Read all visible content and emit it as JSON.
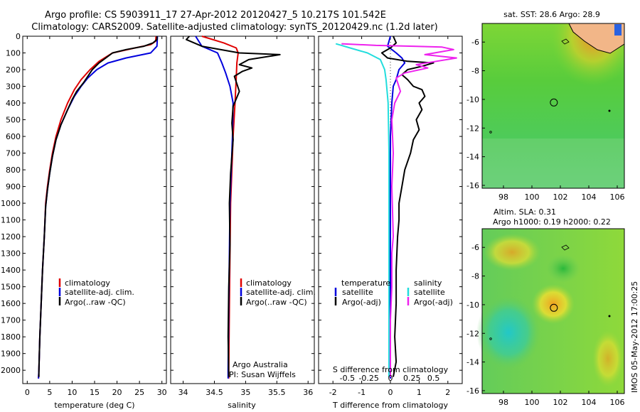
{
  "title": {
    "line1": "Argo profile: CS 5903911_17 27-Apr-2012 20120427_5 10.217S 101.542E",
    "line2": "Climatology: CARS2009. Satellite-adjusted climatology: synTS_20120429.nc (1.2d later)"
  },
  "depth_ticks": [
    0,
    100,
    200,
    300,
    400,
    500,
    600,
    700,
    800,
    900,
    1000,
    1100,
    1200,
    1300,
    1400,
    1500,
    1600,
    1700,
    1800,
    1900,
    2000
  ],
  "colors": {
    "climatology": "#e00000",
    "satellite": "#0000dd",
    "argo": "#000000",
    "sat_salinity": "#22dddd",
    "argo_salinity": "#ee22ee"
  },
  "chart_data": [
    {
      "type": "line",
      "xlabel": "temperature (deg C)",
      "ylabel": "",
      "xlim": [
        -1,
        31
      ],
      "ylim": [
        2080,
        0
      ],
      "x_ticks": [
        0,
        5,
        10,
        15,
        20,
        25,
        30
      ],
      "legend": {
        "placement": "center-left",
        "entries": [
          "climatology",
          "satellite-adj. clim.",
          "Argo(..raw -QC)"
        ]
      },
      "series": [
        {
          "name": "climatology",
          "color": "#e00000",
          "points": [
            [
              28.7,
              0
            ],
            [
              28.6,
              30
            ],
            [
              27.5,
              50
            ],
            [
              24,
              70
            ],
            [
              19,
              100
            ],
            [
              16,
              150
            ],
            [
              14,
              200
            ],
            [
              12,
              260
            ],
            [
              10.5,
              320
            ],
            [
              9,
              400
            ],
            [
              7.5,
              500
            ],
            [
              6.4,
              600
            ],
            [
              5.6,
              700
            ],
            [
              5,
              800
            ],
            [
              4.5,
              900
            ],
            [
              4.1,
              1000
            ],
            [
              3.8,
              1200
            ],
            [
              3.4,
              1400
            ],
            [
              3.1,
              1600
            ],
            [
              2.8,
              1800
            ],
            [
              2.6,
              2000
            ],
            [
              2.5,
              2050
            ]
          ]
        },
        {
          "name": "satellite-adj. clim.",
          "color": "#0000dd",
          "points": [
            [
              29,
              0
            ],
            [
              28.9,
              60
            ],
            [
              27.5,
              100
            ],
            [
              22,
              130
            ],
            [
              18,
              160
            ],
            [
              15.5,
              200
            ],
            [
              13.5,
              250
            ],
            [
              12,
              300
            ],
            [
              10.5,
              360
            ],
            [
              9,
              440
            ],
            [
              7.5,
              530
            ],
            [
              6.4,
              620
            ],
            [
              5.6,
              720
            ],
            [
              5,
              820
            ],
            [
              4.5,
              920
            ],
            [
              4.1,
              1020
            ],
            [
              3.8,
              1200
            ],
            [
              3.4,
              1400
            ],
            [
              3.1,
              1600
            ],
            [
              2.8,
              1800
            ],
            [
              2.6,
              2000
            ],
            [
              2.5,
              2050
            ]
          ]
        },
        {
          "name": "Argo(..raw -QC)",
          "color": "#000000",
          "points": [
            [
              28.9,
              0
            ],
            [
              28.9,
              20
            ],
            [
              28,
              40
            ],
            [
              26,
              60
            ],
            [
              22,
              80
            ],
            [
              19,
              100
            ],
            [
              17.5,
              130
            ],
            [
              16,
              160
            ],
            [
              14.5,
              200
            ],
            [
              13.5,
              240
            ],
            [
              12.5,
              280
            ],
            [
              11,
              330
            ],
            [
              10,
              380
            ],
            [
              9,
              440
            ],
            [
              7.5,
              530
            ],
            [
              6.4,
              620
            ],
            [
              5.6,
              720
            ],
            [
              5,
              820
            ],
            [
              4.5,
              920
            ],
            [
              4.1,
              1020
            ],
            [
              3.8,
              1200
            ],
            [
              3.4,
              1400
            ],
            [
              3.1,
              1600
            ],
            [
              2.8,
              1800
            ],
            [
              2.6,
              2000
            ],
            [
              2.6,
              2040
            ]
          ]
        }
      ]
    },
    {
      "type": "line",
      "xlabel": "salinity",
      "ylabel": "",
      "xlim": [
        33.8,
        36.1
      ],
      "ylim": [
        2080,
        0
      ],
      "x_ticks": [
        34,
        34.5,
        35,
        35.5,
        36
      ],
      "x_tick_labels": [
        "34",
        "34.5",
        "35",
        "35.5",
        "36"
      ],
      "legend": {
        "placement": "center-right",
        "entries": [
          "climatology",
          "satellite-adj. clim.",
          "Argo(..raw -QC)"
        ]
      },
      "annotation": [
        "Argo Australia",
        "PI: Susan Wijffels"
      ],
      "series": [
        {
          "name": "climatology",
          "color": "#e00000",
          "points": [
            [
              34.3,
              0
            ],
            [
              34.65,
              40
            ],
            [
              34.85,
              70
            ],
            [
              34.88,
              100
            ],
            [
              34.86,
              160
            ],
            [
              34.85,
              250
            ],
            [
              34.83,
              400
            ],
            [
              34.8,
              600
            ],
            [
              34.78,
              800
            ],
            [
              34.76,
              1000
            ],
            [
              34.75,
              1300
            ],
            [
              34.74,
              1600
            ],
            [
              34.73,
              2000
            ],
            [
              34.73,
              2050
            ]
          ]
        },
        {
          "name": "satellite-adj. clim.",
          "color": "#0000dd",
          "points": [
            [
              34.2,
              0
            ],
            [
              34.3,
              60
            ],
            [
              34.55,
              100
            ],
            [
              34.62,
              160
            ],
            [
              34.68,
              220
            ],
            [
              34.75,
              300
            ],
            [
              34.8,
              400
            ],
            [
              34.79,
              600
            ],
            [
              34.77,
              800
            ],
            [
              34.75,
              1000
            ],
            [
              34.74,
              1300
            ],
            [
              34.73,
              1600
            ],
            [
              34.72,
              2000
            ],
            [
              34.72,
              2050
            ]
          ]
        },
        {
          "name": "Argo(..raw -QC)",
          "color": "#000000",
          "points": [
            [
              34.1,
              0
            ],
            [
              34.05,
              20
            ],
            [
              34.3,
              60
            ],
            [
              34.9,
              100
            ],
            [
              35.55,
              110
            ],
            [
              35.05,
              140
            ],
            [
              34.9,
              170
            ],
            [
              35.1,
              190
            ],
            [
              34.95,
              210
            ],
            [
              34.82,
              240
            ],
            [
              34.9,
              330
            ],
            [
              34.8,
              420
            ],
            [
              34.78,
              520
            ],
            [
              34.8,
              620
            ],
            [
              34.76,
              820
            ],
            [
              34.74,
              1000
            ],
            [
              34.75,
              1250
            ],
            [
              34.73,
              1500
            ],
            [
              34.72,
              1800
            ],
            [
              34.73,
              2040
            ]
          ]
        }
      ]
    },
    {
      "type": "line",
      "xlabel": "T difference from climatology",
      "xlabel_secondary": "S difference from climatology",
      "ylabel": "",
      "xlim": [
        -2.5,
        2.5
      ],
      "ylim": [
        2080,
        0
      ],
      "x_ticks": [
        -2,
        -1,
        0,
        1,
        2
      ],
      "x_tick_labels": [
        "-2",
        "-1",
        "0",
        "1",
        "2"
      ],
      "secondary_x_ticks": [
        -0.5,
        -0.25,
        0,
        0.25,
        0.5
      ],
      "secondary_x_tick_labels": [
        "-0.5",
        "-0.25",
        "0",
        "0.25",
        "0.5"
      ],
      "legend": {
        "placement": "bottom-center",
        "temperature_header": "temperature",
        "salinity_header": "salinity",
        "entries": [
          "satellite",
          "Argo(-adj)",
          "satellite",
          "Argo(-adj)"
        ]
      },
      "series": [
        {
          "name": "satellite",
          "group": "temperature",
          "color": "#0000dd",
          "points": [
            [
              0,
              0
            ],
            [
              -0.1,
              60
            ],
            [
              0.2,
              100
            ],
            [
              0.4,
              130
            ],
            [
              0.5,
              160
            ],
            [
              0.3,
              200
            ],
            [
              0.2,
              260
            ],
            [
              0.1,
              300
            ],
            [
              0.05,
              400
            ],
            [
              0,
              600
            ],
            [
              0,
              1000
            ],
            [
              0,
              1500
            ],
            [
              0,
              2050
            ]
          ]
        },
        {
          "name": "Argo(-adj)",
          "group": "temperature",
          "color": "#000000",
          "points": [
            [
              0.1,
              0
            ],
            [
              0.2,
              40
            ],
            [
              0,
              70
            ],
            [
              -0.3,
              100
            ],
            [
              -0.1,
              130
            ],
            [
              0.6,
              150
            ],
            [
              1.5,
              160
            ],
            [
              1.1,
              180
            ],
            [
              0.6,
              200
            ],
            [
              0.4,
              230
            ],
            [
              0.6,
              260
            ],
            [
              0.8,
              300
            ],
            [
              1.1,
              320
            ],
            [
              1.2,
              360
            ],
            [
              1.0,
              400
            ],
            [
              1.1,
              440
            ],
            [
              0.9,
              500
            ],
            [
              1.0,
              560
            ],
            [
              0.8,
              620
            ],
            [
              0.7,
              700
            ],
            [
              0.5,
              800
            ],
            [
              0.4,
              900
            ],
            [
              0.3,
              1000
            ],
            [
              0.3,
              1100
            ],
            [
              0.25,
              1200
            ],
            [
              0.2,
              1400
            ],
            [
              0.2,
              1600
            ],
            [
              0.15,
              1800
            ],
            [
              0.2,
              1950
            ],
            [
              0.1,
              2040
            ]
          ]
        },
        {
          "name": "satellite",
          "group": "salinity",
          "color": "#22dddd",
          "points": [
            [
              -1.9,
              45
            ],
            [
              -1.4,
              70
            ],
            [
              -0.8,
              100
            ],
            [
              -0.35,
              140
            ],
            [
              -0.2,
              200
            ],
            [
              -0.15,
              260
            ],
            [
              -0.08,
              400
            ],
            [
              -0.05,
              700
            ],
            [
              -0.05,
              1000
            ],
            [
              -0.05,
              1400
            ],
            [
              -0.05,
              1800
            ],
            [
              -0.05,
              2040
            ]
          ]
        },
        {
          "name": "Argo(-adj)",
          "group": "salinity",
          "color": "#ee22ee",
          "points": [
            [
              -1.7,
              45
            ],
            [
              -0.5,
              55
            ],
            [
              0.8,
              60
            ],
            [
              1.8,
              65
            ],
            [
              2.2,
              80
            ],
            [
              1.2,
              110
            ],
            [
              2.3,
              130
            ],
            [
              1.6,
              150
            ],
            [
              0.9,
              170
            ],
            [
              1.3,
              190
            ],
            [
              0.5,
              220
            ],
            [
              0.2,
              250
            ],
            [
              0.35,
              330
            ],
            [
              0.15,
              400
            ],
            [
              0.05,
              500
            ],
            [
              0.1,
              700
            ],
            [
              0.05,
              900
            ],
            [
              0.1,
              1200
            ],
            [
              0.05,
              1300
            ],
            [
              0.05,
              1500
            ],
            [
              0,
              1700
            ],
            [
              0,
              2040
            ]
          ]
        }
      ]
    },
    {
      "type": "heatmap",
      "title": "sat. SST: 28.6 Argo: 28.9",
      "xlabel": "",
      "ylabel": "",
      "xlim": [
        96.5,
        106.5
      ],
      "ylim": [
        -16.2,
        -4.7
      ],
      "x_ticks": [
        98,
        100,
        102,
        104,
        106
      ],
      "y_ticks": [
        -6,
        -8,
        -10,
        -12,
        -14,
        -16
      ],
      "argo_position": [
        101.542,
        -10.217
      ]
    },
    {
      "type": "heatmap",
      "title": "Altim. SLA: 0.31",
      "subtitle": "Argo h1000: 0.19 h2000: 0.22",
      "xlabel": "",
      "ylabel": "",
      "xlim": [
        96.5,
        106.5
      ],
      "ylim": [
        -16.2,
        -4.7
      ],
      "x_ticks": [
        98,
        100,
        102,
        104,
        106
      ],
      "y_ticks": [
        -6,
        -8,
        -10,
        -12,
        -14,
        -16
      ],
      "argo_position": [
        101.542,
        -10.217
      ]
    }
  ],
  "footer": {
    "vertical_text": "IMOS 05-May-2012 17:00:25"
  }
}
